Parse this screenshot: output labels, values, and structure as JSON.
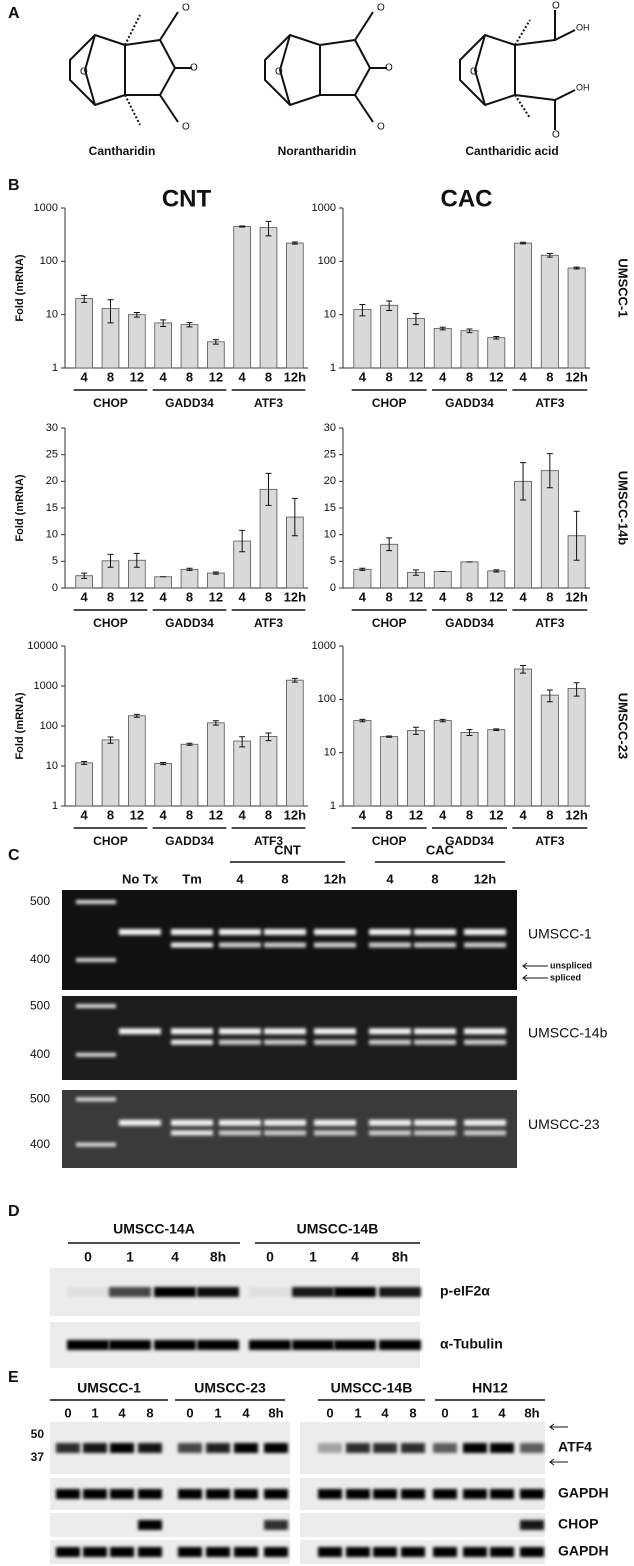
{
  "panel_labels": [
    "A",
    "B",
    "C",
    "D",
    "E"
  ],
  "structures": [
    "Cantharidin",
    "Norantharidin",
    "Cantharidic acid"
  ],
  "chart_data": [
    {
      "type": "bar",
      "title": "CNT",
      "ylabel": "Fold (mRNA)",
      "log": true,
      "ylim": [
        1,
        1000
      ],
      "yticks": [
        1,
        10,
        100,
        1000
      ],
      "categories": [
        "4",
        "8",
        "12",
        "4",
        "8",
        "12",
        "4",
        "8",
        "12h"
      ],
      "groups": [
        "CHOP",
        "GADD34",
        "ATF3"
      ],
      "values": [
        20,
        13,
        10,
        7,
        6.5,
        3.1,
        450,
        430,
        220
      ],
      "errors": [
        3,
        6,
        1,
        1,
        0.6,
        0.3,
        10,
        130,
        10
      ],
      "color": "#d9d9d9"
    },
    {
      "type": "bar",
      "title": "CAC",
      "side_label": "UMSCC-1",
      "log": true,
      "ylim": [
        1,
        1000
      ],
      "yticks": [
        1,
        10,
        100,
        1000
      ],
      "categories": [
        "4",
        "8",
        "12",
        "4",
        "8",
        "12",
        "4",
        "8",
        "12h"
      ],
      "groups": [
        "CHOP",
        "GADD34",
        "ATF3"
      ],
      "values": [
        12.5,
        15,
        8.5,
        5.5,
        5,
        3.7,
        220,
        130,
        75
      ],
      "errors": [
        3,
        3,
        2,
        0.3,
        0.4,
        0.2,
        8,
        10,
        3
      ],
      "color": "#d9d9d9"
    },
    {
      "type": "bar",
      "ylabel": "Fold (mRNA)",
      "log": false,
      "ylim": [
        0,
        30
      ],
      "yticks": [
        0,
        5,
        10,
        15,
        20,
        25,
        30
      ],
      "categories": [
        "4",
        "8",
        "12",
        "4",
        "8",
        "12",
        "4",
        "8",
        "12h"
      ],
      "groups": [
        "CHOP",
        "GADD34",
        "ATF3"
      ],
      "values": [
        2.3,
        5.1,
        5.2,
        2.1,
        3.5,
        2.8,
        8.8,
        18.5,
        13.3
      ],
      "errors": [
        0.5,
        1.2,
        1.3,
        0,
        0.2,
        0.2,
        2,
        3,
        3.5
      ],
      "color": "#d9d9d9"
    },
    {
      "type": "bar",
      "side_label": "UMSCC-14b",
      "log": false,
      "ylim": [
        0,
        30
      ],
      "yticks": [
        0,
        5,
        10,
        15,
        20,
        25,
        30
      ],
      "categories": [
        "4",
        "8",
        "12",
        "4",
        "8",
        "12",
        "4",
        "8",
        "12h"
      ],
      "groups": [
        "CHOP",
        "GADD34",
        "ATF3"
      ],
      "values": [
        3.5,
        8.2,
        2.9,
        3.1,
        4.9,
        3.2,
        20,
        22,
        9.8
      ],
      "errors": [
        0.2,
        1.2,
        0.5,
        0,
        0,
        0.2,
        3.5,
        3.2,
        4.6
      ],
      "color": "#d9d9d9"
    },
    {
      "type": "bar",
      "ylabel": "Fold (mRNA)",
      "log": true,
      "ylim": [
        1,
        10000
      ],
      "yticks": [
        1,
        10,
        100,
        1000,
        10000
      ],
      "categories": [
        "4",
        "8",
        "12",
        "4",
        "8",
        "12",
        "4",
        "8",
        "12h"
      ],
      "groups": [
        "CHOP",
        "GADD34",
        "ATF3"
      ],
      "values": [
        12,
        45,
        180,
        11.5,
        35,
        120,
        42,
        55,
        1400
      ],
      "errors": [
        1,
        8,
        15,
        0.7,
        2,
        15,
        12,
        12,
        150
      ],
      "color": "#d9d9d9"
    },
    {
      "type": "bar",
      "side_label": "UMSCC-23",
      "log": true,
      "ylim": [
        1,
        1000
      ],
      "yticks": [
        1,
        10,
        100,
        1000
      ],
      "categories": [
        "4",
        "8",
        "12",
        "4",
        "8",
        "12",
        "4",
        "8",
        "12h"
      ],
      "groups": [
        "CHOP",
        "GADD34",
        "ATF3"
      ],
      "values": [
        40,
        20,
        26,
        40,
        24,
        27,
        370,
        120,
        160
      ],
      "errors": [
        2,
        0.5,
        4,
        2,
        3,
        1,
        60,
        30,
        45
      ],
      "color": "#d9d9d9"
    }
  ],
  "gel": {
    "groups": [
      "CNT",
      "CAC"
    ],
    "lanes": [
      "No Tx",
      "Tm",
      "4",
      "8",
      "12h",
      "4",
      "8",
      "12h"
    ],
    "markers": [
      "500",
      "400"
    ],
    "rows": [
      "UMSCC-1",
      "UMSCC-14b",
      "UMSCC-23"
    ],
    "annotations": [
      "unspliced",
      "spliced"
    ]
  },
  "blot_d": {
    "groups": [
      "UMSCC-14A",
      "UMSCC-14B"
    ],
    "lanes": [
      "0",
      "1",
      "4",
      "8h",
      "0",
      "1",
      "4",
      "8h"
    ],
    "rows": [
      "p-eIF2α",
      "α-Tubulin"
    ]
  },
  "blot_e": {
    "groups": [
      "UMSCC-1",
      "UMSCC-23",
      "UMSCC-14B",
      "HN12"
    ],
    "lanes": [
      "0",
      "1",
      "4",
      "8",
      "0",
      "1",
      "4",
      "8h",
      "0",
      "1",
      "4",
      "8",
      "0",
      "1",
      "4",
      "8h"
    ],
    "markers": [
      "50",
      "37"
    ],
    "rows": [
      "ATF4",
      "GAPDH",
      "CHOP",
      "GAPDH"
    ]
  }
}
